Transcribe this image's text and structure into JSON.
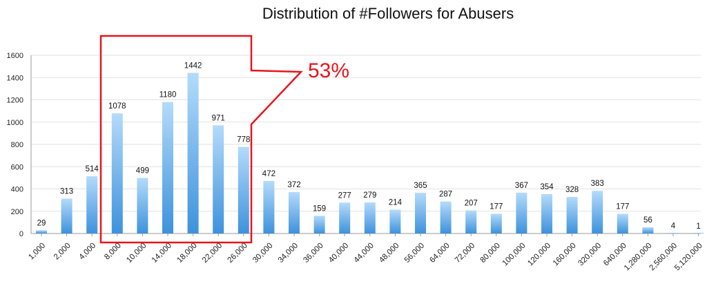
{
  "chart_data": {
    "type": "bar",
    "title": "Distribution of #Followers for Abusers",
    "xlabel": "",
    "ylabel": "",
    "ylim": [
      0,
      1600
    ],
    "yticks": [
      "0",
      "200",
      "400",
      "600",
      "800",
      "1000",
      "1200",
      "1400",
      "1600"
    ],
    "grid": true,
    "categories": [
      "1,000",
      "2,000",
      "4,000",
      "8,000",
      "10,000",
      "14,000",
      "18,000",
      "22,000",
      "26,000",
      "30,000",
      "34,000",
      "36,000",
      "40,000",
      "44,000",
      "48,000",
      "56,000",
      "64,000",
      "72,000",
      "80,000",
      "100,000",
      "120,000",
      "160,000",
      "320,000",
      "640,000",
      "1,280,000",
      "2,560,000",
      "5,120,000"
    ],
    "values": [
      29,
      313,
      514,
      1078,
      499,
      1180,
      1442,
      971,
      778,
      472,
      372,
      159,
      277,
      279,
      214,
      365,
      287,
      207,
      177,
      367,
      354,
      328,
      383,
      177,
      56,
      4,
      1
    ],
    "data_labels": [
      "29",
      "313",
      "514",
      "1078",
      "499",
      "1180",
      "1442",
      "971",
      "778",
      "472",
      "372",
      "159",
      "277",
      "279",
      "214",
      "365",
      "287",
      "207",
      "177",
      "367",
      "354",
      "328",
      "383",
      "177",
      "56",
      "4",
      "1"
    ],
    "bar_color": "#5da9e9",
    "annotation": {
      "text": "53%",
      "color": "#e8141c",
      "highlight_from": "8,000",
      "highlight_to": "26,000"
    }
  }
}
